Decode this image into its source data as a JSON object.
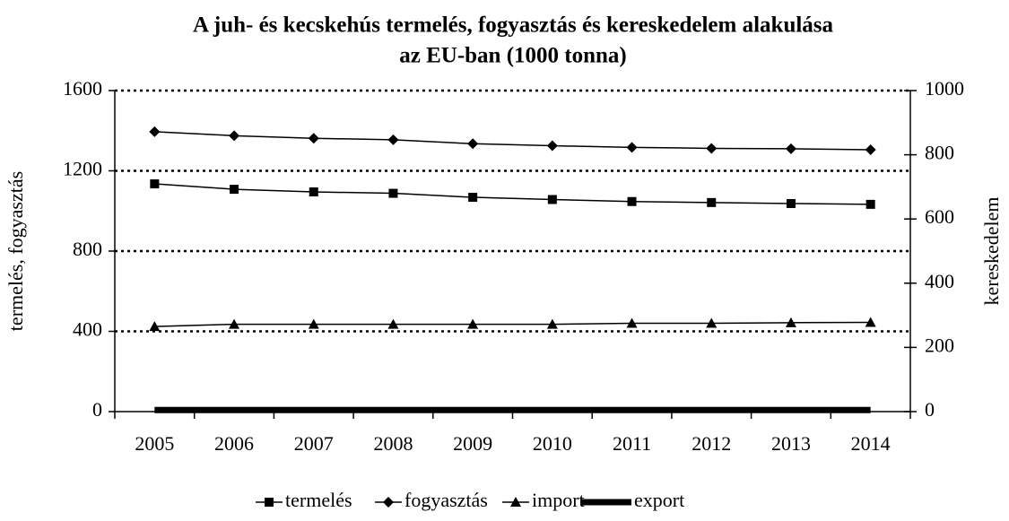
{
  "chart_data": {
    "type": "line",
    "title": [
      "A juh- és kecskehús termelés, fogyasztás és kereskedelem alakulása",
      "az EU-ban (1000 tonna)"
    ],
    "y_label": "termelés, fogyasztás",
    "y2_label": "kereskedelem",
    "categories": [
      "2005",
      "2006",
      "2007",
      "2008",
      "2009",
      "2010",
      "2011",
      "2012",
      "2013",
      "2014"
    ],
    "series": [
      {
        "name": "termelés",
        "color": "#000000",
        "marker": "square",
        "values": [
          1135,
          1108,
          1095,
          1088,
          1068,
          1057,
          1047,
          1042,
          1037,
          1033
        ]
      },
      {
        "name": "fogyasztás",
        "color": "#000000",
        "marker": "diamond",
        "values": [
          1395,
          1375,
          1362,
          1355,
          1335,
          1325,
          1317,
          1312,
          1310,
          1305
        ]
      },
      {
        "name": "import",
        "color": "#000000",
        "marker": "triangle",
        "axis": "y2",
        "values": [
          265,
          272,
          272,
          272,
          272,
          272,
          275,
          275,
          277,
          278
        ]
      },
      {
        "name": "export",
        "color": "#000000",
        "marker": "none",
        "line_width": 7,
        "axis": "y2",
        "values": [
          5,
          5,
          5,
          5,
          5,
          5,
          5,
          5,
          5,
          5
        ]
      }
    ],
    "ylim": [
      0,
      1600
    ],
    "yticks": [
      0,
      400,
      800,
      1200,
      1600
    ],
    "y2lim": [
      0,
      1000
    ],
    "y2ticks": [
      0,
      200,
      400,
      600,
      800,
      1000
    ],
    "grid": true,
    "legend": "bottom"
  }
}
